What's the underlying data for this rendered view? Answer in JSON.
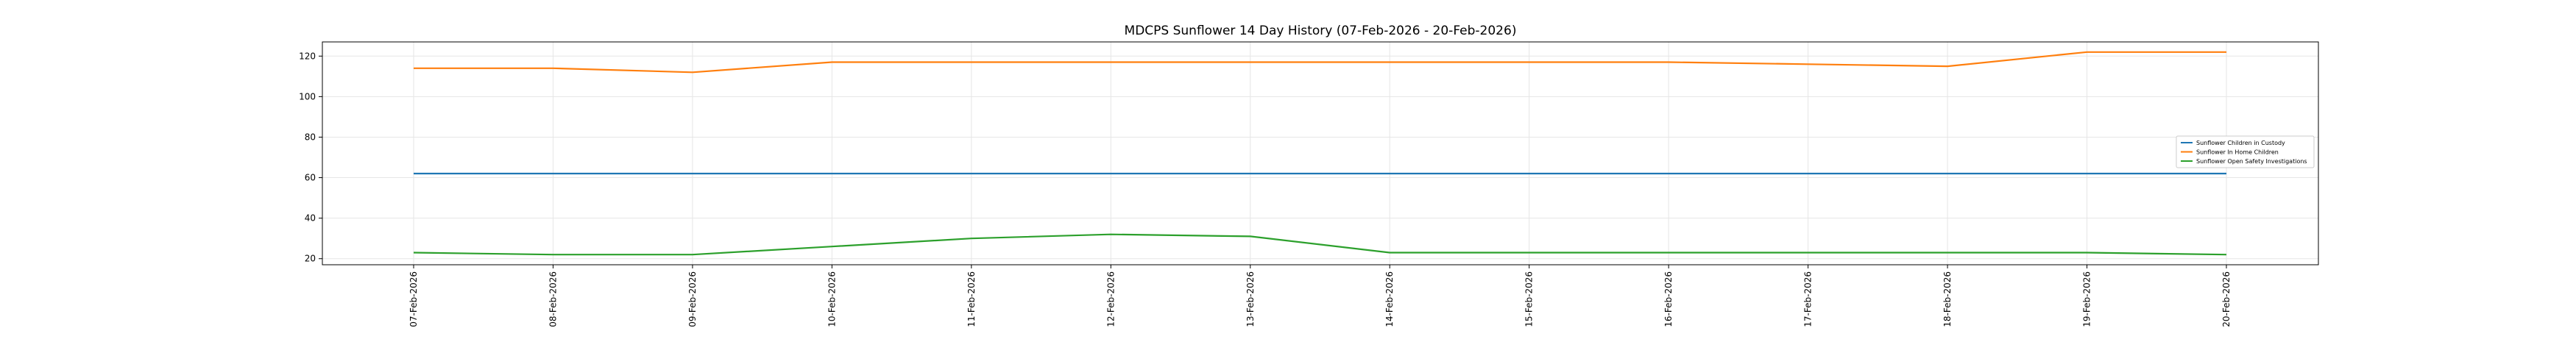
{
  "chart_data": {
    "type": "line",
    "title": "MDCPS Sunflower 14 Day History (07-Feb-2026 - 20-Feb-2026)",
    "xlabel": "",
    "ylabel": "",
    "categories": [
      "07-Feb-2026",
      "08-Feb-2026",
      "09-Feb-2026",
      "10-Feb-2026",
      "11-Feb-2026",
      "12-Feb-2026",
      "13-Feb-2026",
      "14-Feb-2026",
      "15-Feb-2026",
      "16-Feb-2026",
      "17-Feb-2026",
      "18-Feb-2026",
      "19-Feb-2026",
      "20-Feb-2026"
    ],
    "ylim": [
      17,
      127
    ],
    "yticks": [
      20,
      40,
      60,
      80,
      100,
      120
    ],
    "grid": true,
    "legend_position": "right",
    "series": [
      {
        "name": "Sunflower Children in Custody",
        "color": "#1f77b4",
        "values": [
          62,
          62,
          62,
          62,
          62,
          62,
          62,
          62,
          62,
          62,
          62,
          62,
          62,
          62
        ]
      },
      {
        "name": "Sunflower In Home Children",
        "color": "#ff7f0e",
        "values": [
          114,
          114,
          112,
          117,
          117,
          117,
          117,
          117,
          117,
          117,
          116,
          115,
          122,
          122
        ]
      },
      {
        "name": "Sunflower Open Safety Investigations",
        "color": "#2ca02c",
        "values": [
          23,
          22,
          22,
          26,
          30,
          32,
          31,
          23,
          23,
          23,
          23,
          23,
          23,
          22
        ]
      }
    ]
  }
}
